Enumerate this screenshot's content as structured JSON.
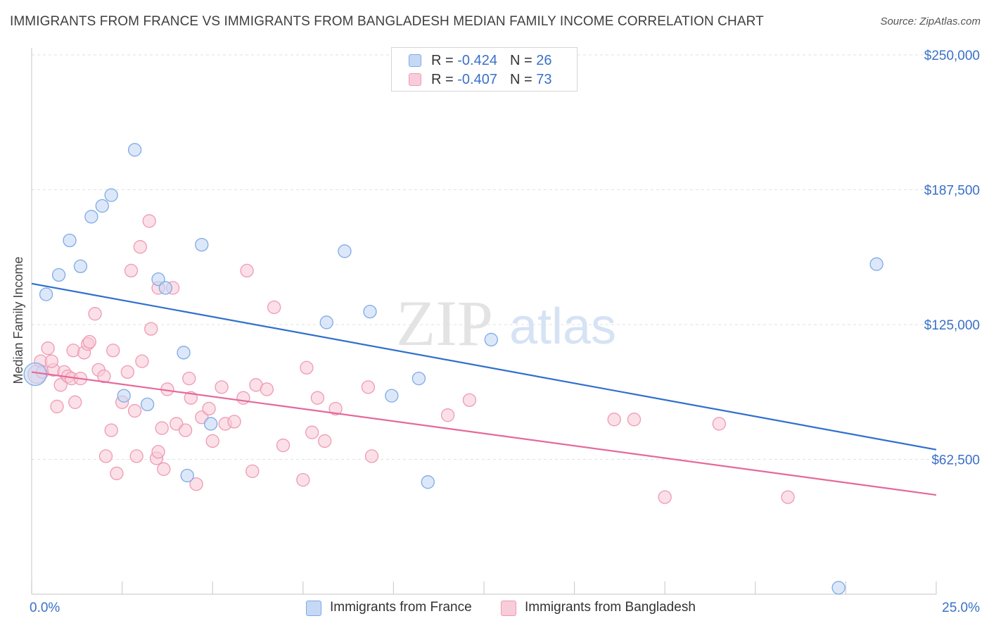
{
  "header": {
    "title": "IMMIGRANTS FROM FRANCE VS IMMIGRANTS FROM BANGLADESH MEDIAN FAMILY INCOME CORRELATION CHART",
    "source": "Source: ZipAtlas.com"
  },
  "watermark": {
    "zip": "ZIP",
    "atlas": "atlas"
  },
  "legend": {
    "france": {
      "r_label": "R = ",
      "r_value": "-0.424",
      "n_label": "N = ",
      "n_value": "26"
    },
    "bangladesh": {
      "r_label": "R = ",
      "r_value": "-0.407",
      "n_label": "N = ",
      "n_value": "73"
    }
  },
  "colors": {
    "france_fill": "#c5d9f5",
    "france_stroke": "#7eaae6",
    "france_line": "#2f6fce",
    "bangladesh_fill": "#f9ccd9",
    "bangladesh_stroke": "#ee9ab5",
    "bangladesh_line": "#e5699a",
    "axis_label_color": "#3a70c8"
  },
  "chart_data": {
    "type": "scatter",
    "title": "IMMIGRANTS FROM FRANCE VS IMMIGRANTS FROM BANGLADESH MEDIAN FAMILY INCOME CORRELATION CHART",
    "xlabel": "",
    "ylabel": "Median Family Income",
    "xlim": [
      0,
      25
    ],
    "ylim": [
      0,
      250000
    ],
    "x_tick_labels": [
      "0.0%",
      "25.0%"
    ],
    "y_ticks": [
      62500,
      125000,
      187500,
      250000
    ],
    "y_tick_labels": [
      "$62,500",
      "$125,000",
      "$187,500",
      "$250,000"
    ],
    "grid": true,
    "legend_position": "top-center",
    "series": [
      {
        "name": "Immigrants from France",
        "trend": {
          "x": [
            0,
            25
          ],
          "y": [
            144000,
            67000
          ]
        },
        "points": [
          {
            "x": 0.1,
            "y": 102000
          },
          {
            "x": 0.4,
            "y": 139000
          },
          {
            "x": 0.75,
            "y": 148000
          },
          {
            "x": 1.05,
            "y": 164000
          },
          {
            "x": 1.35,
            "y": 152000
          },
          {
            "x": 1.65,
            "y": 175000
          },
          {
            "x": 1.95,
            "y": 180000
          },
          {
            "x": 2.2,
            "y": 185000
          },
          {
            "x": 2.85,
            "y": 206000
          },
          {
            "x": 2.55,
            "y": 92000
          },
          {
            "x": 3.2,
            "y": 88000
          },
          {
            "x": 3.5,
            "y": 146000
          },
          {
            "x": 3.7,
            "y": 142000
          },
          {
            "x": 4.2,
            "y": 112000
          },
          {
            "x": 4.3,
            "y": 55000
          },
          {
            "x": 4.7,
            "y": 162000
          },
          {
            "x": 4.95,
            "y": 79000
          },
          {
            "x": 8.15,
            "y": 126000
          },
          {
            "x": 8.65,
            "y": 159000
          },
          {
            "x": 9.35,
            "y": 131000
          },
          {
            "x": 9.95,
            "y": 92000
          },
          {
            "x": 10.7,
            "y": 100000
          },
          {
            "x": 10.95,
            "y": 52000
          },
          {
            "x": 12.7,
            "y": 118000
          },
          {
            "x": 23.35,
            "y": 153000
          },
          {
            "x": 22.3,
            "y": 3000
          }
        ]
      },
      {
        "name": "Immigrants from Bangladesh",
        "trend": {
          "x": [
            0,
            25
          ],
          "y": [
            103000,
            46000
          ]
        },
        "points": [
          {
            "x": 0.15,
            "y": 102000
          },
          {
            "x": 0.25,
            "y": 108000
          },
          {
            "x": 0.3,
            "y": 103000
          },
          {
            "x": 0.45,
            "y": 114000
          },
          {
            "x": 0.6,
            "y": 104000
          },
          {
            "x": 0.7,
            "y": 87000
          },
          {
            "x": 0.8,
            "y": 97000
          },
          {
            "x": 0.9,
            "y": 103000
          },
          {
            "x": 1.0,
            "y": 101000
          },
          {
            "x": 1.1,
            "y": 100000
          },
          {
            "x": 1.15,
            "y": 113000
          },
          {
            "x": 1.2,
            "y": 89000
          },
          {
            "x": 1.35,
            "y": 100000
          },
          {
            "x": 1.45,
            "y": 112000
          },
          {
            "x": 1.55,
            "y": 116000
          },
          {
            "x": 1.6,
            "y": 117000
          },
          {
            "x": 1.75,
            "y": 130000
          },
          {
            "x": 1.85,
            "y": 104000
          },
          {
            "x": 2.0,
            "y": 101000
          },
          {
            "x": 2.05,
            "y": 64000
          },
          {
            "x": 2.2,
            "y": 76000
          },
          {
            "x": 2.25,
            "y": 113000
          },
          {
            "x": 2.35,
            "y": 56000
          },
          {
            "x": 2.5,
            "y": 89000
          },
          {
            "x": 2.65,
            "y": 103000
          },
          {
            "x": 2.75,
            "y": 150000
          },
          {
            "x": 2.85,
            "y": 85000
          },
          {
            "x": 2.9,
            "y": 64000
          },
          {
            "x": 3.0,
            "y": 161000
          },
          {
            "x": 3.05,
            "y": 108000
          },
          {
            "x": 3.25,
            "y": 173000
          },
          {
            "x": 3.3,
            "y": 123000
          },
          {
            "x": 3.45,
            "y": 63000
          },
          {
            "x": 3.5,
            "y": 66000
          },
          {
            "x": 3.6,
            "y": 77000
          },
          {
            "x": 3.65,
            "y": 58000
          },
          {
            "x": 3.75,
            "y": 95000
          },
          {
            "x": 3.9,
            "y": 142000
          },
          {
            "x": 4.0,
            "y": 79000
          },
          {
            "x": 4.25,
            "y": 76000
          },
          {
            "x": 4.35,
            "y": 100000
          },
          {
            "x": 4.4,
            "y": 91000
          },
          {
            "x": 4.55,
            "y": 51000
          },
          {
            "x": 4.7,
            "y": 82000
          },
          {
            "x": 4.9,
            "y": 86000
          },
          {
            "x": 5.0,
            "y": 71000
          },
          {
            "x": 5.25,
            "y": 96000
          },
          {
            "x": 5.35,
            "y": 79000
          },
          {
            "x": 5.6,
            "y": 80000
          },
          {
            "x": 5.85,
            "y": 91000
          },
          {
            "x": 5.95,
            "y": 150000
          },
          {
            "x": 6.1,
            "y": 57000
          },
          {
            "x": 6.2,
            "y": 97000
          },
          {
            "x": 6.5,
            "y": 95000
          },
          {
            "x": 6.7,
            "y": 133000
          },
          {
            "x": 6.95,
            "y": 69000
          },
          {
            "x": 7.5,
            "y": 53000
          },
          {
            "x": 7.6,
            "y": 105000
          },
          {
            "x": 7.75,
            "y": 75000
          },
          {
            "x": 7.9,
            "y": 91000
          },
          {
            "x": 8.1,
            "y": 71000
          },
          {
            "x": 8.4,
            "y": 86000
          },
          {
            "x": 9.3,
            "y": 96000
          },
          {
            "x": 9.4,
            "y": 64000
          },
          {
            "x": 11.5,
            "y": 83000
          },
          {
            "x": 12.1,
            "y": 90000
          },
          {
            "x": 16.1,
            "y": 81000
          },
          {
            "x": 16.65,
            "y": 81000
          },
          {
            "x": 17.5,
            "y": 45000
          },
          {
            "x": 19.0,
            "y": 79000
          },
          {
            "x": 20.9,
            "y": 45000
          },
          {
            "x": 3.5,
            "y": 142000
          },
          {
            "x": 0.55,
            "y": 108000
          }
        ]
      }
    ]
  }
}
